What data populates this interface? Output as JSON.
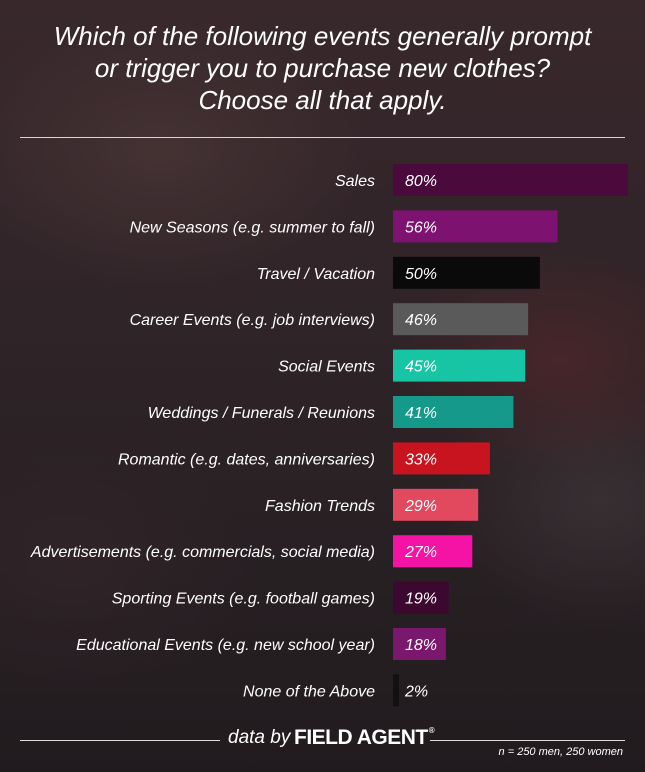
{
  "chart_data": {
    "type": "bar",
    "orientation": "horizontal",
    "title": "Which of the following events generally prompt or trigger you to purchase new clothes? Choose all that apply.",
    "title_lines": [
      "Which of the following events generally prompt",
      "or trigger you to purchase new clothes?",
      "Choose all that apply."
    ],
    "xlim": [
      0,
      80
    ],
    "grid": false,
    "categories": [
      "Sales",
      "New Seasons (e.g. summer to fall)",
      "Travel / Vacation",
      "Career Events (e.g. job interviews)",
      "Social Events",
      "Weddings / Funerals / Reunions",
      "Romantic (e.g. dates, anniversaries)",
      "Fashion Trends",
      "Advertisements (e.g. commercials, social media)",
      "Sporting Events (e.g. football games)",
      "Educational Events (e.g. new school year)",
      "None of the Above"
    ],
    "values": [
      80,
      56,
      50,
      46,
      45,
      41,
      33,
      29,
      27,
      19,
      18,
      2
    ],
    "value_labels": [
      "80%",
      "56%",
      "50%",
      "46%",
      "45%",
      "41%",
      "33%",
      "29%",
      "27%",
      "19%",
      "18%",
      "2%"
    ],
    "colors": [
      "#4a0a3c",
      "#7d1270",
      "#0a0a0a",
      "#5a5a5a",
      "#17c4a4",
      "#14998a",
      "#c8141e",
      "#e2485e",
      "#f413a4",
      "#3c0830",
      "#7a186e",
      "#111111"
    ]
  },
  "footer": {
    "credit": "data by",
    "brand": "FIELD AGENT",
    "reg_mark": "®",
    "sample": "n = 250 men, 250 women"
  }
}
